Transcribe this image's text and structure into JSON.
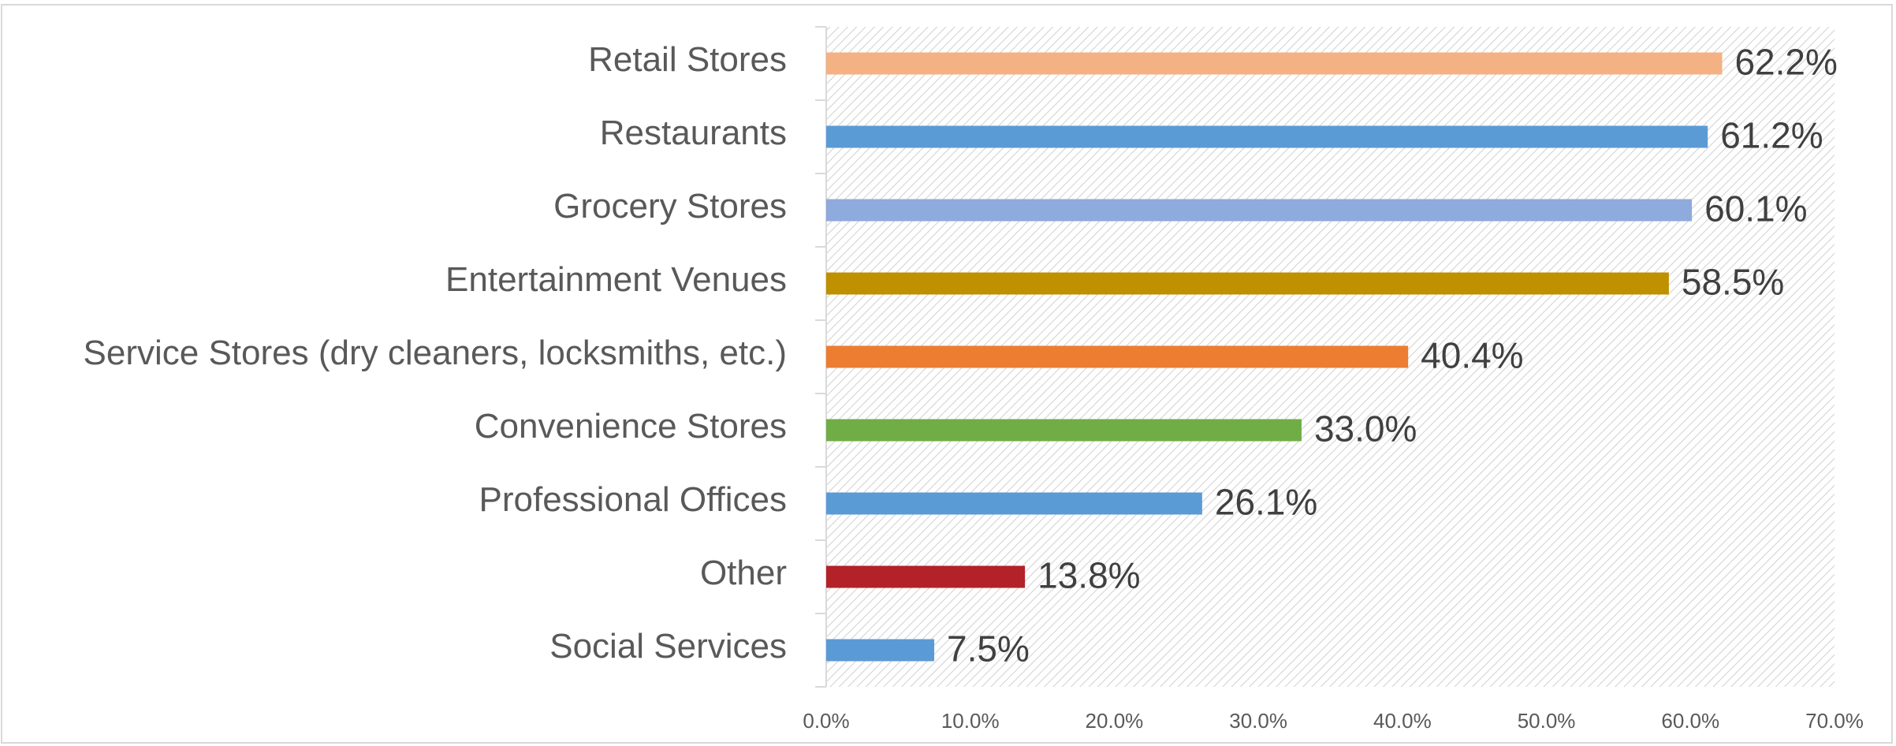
{
  "chart_data": {
    "type": "bar",
    "orientation": "horizontal",
    "categories": [
      "Retail Stores",
      "Restaurants",
      "Grocery Stores",
      "Entertainment Venues",
      "Service Stores (dry cleaners, locksmiths, etc.)",
      "Convenience Stores",
      "Professional Offices",
      "Other",
      "Social Services"
    ],
    "values": [
      62.2,
      61.2,
      60.1,
      58.5,
      40.4,
      33.0,
      26.1,
      13.8,
      7.5
    ],
    "value_labels": [
      "62.2%",
      "61.2%",
      "60.1%",
      "58.5%",
      "40.4%",
      "33.0%",
      "26.1%",
      "13.8%",
      "7.5%"
    ],
    "colors": [
      "#f4b183",
      "#5b9bd5",
      "#8faadc",
      "#bf9000",
      "#ed7d31",
      "#70ad47",
      "#5b9bd5",
      "#b22228",
      "#5b9bd5"
    ],
    "xlim": [
      0,
      70
    ],
    "xticks": [
      {
        "value": 0,
        "label": "0.0%"
      },
      {
        "value": 10,
        "label": "10.0%"
      },
      {
        "value": 20,
        "label": "20.0%"
      },
      {
        "value": 30,
        "label": "30.0%"
      },
      {
        "value": 40,
        "label": "40.0%"
      },
      {
        "value": 50,
        "label": "50.0%"
      },
      {
        "value": 60,
        "label": "60.0%"
      },
      {
        "value": 70,
        "label": "70.0%"
      }
    ],
    "grid": false
  }
}
